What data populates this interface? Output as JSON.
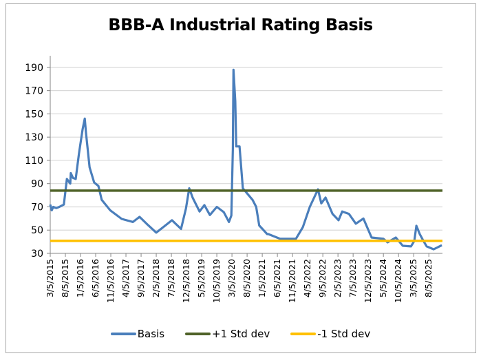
{
  "chart_data": {
    "type": "line",
    "title": "BBB-A Industrial Rating Basis",
    "xlabel": "",
    "ylabel": "",
    "ylim": [
      30,
      200
    ],
    "yticks": [
      30,
      50,
      70,
      90,
      110,
      130,
      150,
      170,
      190
    ],
    "grid": true,
    "legend_position": "bottom",
    "x_unit": "months since 3/5/2015",
    "xlim": [
      0,
      129.5
    ],
    "xtick_labels": [
      "3/5/2015",
      "8/5/2015",
      "1/5/2016",
      "6/5/2016",
      "11/5/2016",
      "4/5/2017",
      "9/5/2017",
      "2/5/2018",
      "7/5/2018",
      "12/5/2018",
      "5/5/2019",
      "10/5/2019",
      "3/5/2020",
      "8/5/2020",
      "1/5/2021",
      "6/5/2021",
      "11/5/2021",
      "4/5/2022",
      "9/5/2022",
      "2/5/2023",
      "7/5/2023",
      "12/5/2023",
      "5/5/2024",
      "10/5/2024",
      "3/5/2025",
      "8/5/2025"
    ],
    "xtick_step_months": 5,
    "series": [
      {
        "name": "Basis",
        "color": "#4a7ebb",
        "x": [
          0,
          0.5,
          1,
          2,
          3,
          4.5,
          5.5,
          6.6,
          6.8,
          7.5,
          8.4,
          9.5,
          10.7,
          11.4,
          11.8,
          13,
          14.5,
          15.9,
          17,
          19.8,
          23.6,
          27.3,
          29.5,
          31.8,
          35,
          38,
          40.2,
          43.2,
          44.8,
          45.9,
          47,
          49.3,
          50.9,
          52.7,
          55,
          57.3,
          59,
          59.8,
          60.3,
          60.5,
          61.1,
          61.4,
          62.5,
          63.6,
          66.8,
          68,
          69,
          71.6,
          72,
          75.9,
          81.1,
          83.4,
          85.7,
          88.4,
          89.5,
          90.9,
          93.2,
          95.2,
          96.4,
          98.6,
          100.9,
          103.4,
          106.1,
          110,
          111.4,
          114.1,
          116.4,
          119.1,
          120.2,
          120.9,
          122,
          123.2,
          124.3,
          126.6,
          129.3
        ],
        "y": [
          72,
          67,
          70,
          69,
          70,
          72,
          94,
          90,
          99,
          95,
          94,
          116,
          137,
          146,
          134,
          104,
          91,
          88,
          76,
          67,
          59.6,
          57,
          61.4,
          55.5,
          47.8,
          54,
          58.5,
          51,
          68.5,
          86,
          78,
          66,
          71.5,
          63,
          70,
          65.5,
          57,
          62.5,
          120,
          188,
          161,
          122,
          122,
          86,
          76,
          70,
          54,
          46.6,
          46.6,
          42.5,
          42.5,
          52.5,
          70,
          85,
          73,
          78,
          64,
          58.5,
          66,
          64,
          55.5,
          60,
          43.6,
          42.5,
          39.5,
          43.6,
          36.5,
          36,
          40.7,
          53.7,
          46.6,
          40.7,
          36,
          33.5,
          37
        ]
      },
      {
        "name": "+1 Std dev",
        "color": "#4f6228",
        "value": 84
      },
      {
        "name": "-1 Std dev",
        "color": "#ffc000",
        "value": 40.7
      }
    ]
  }
}
